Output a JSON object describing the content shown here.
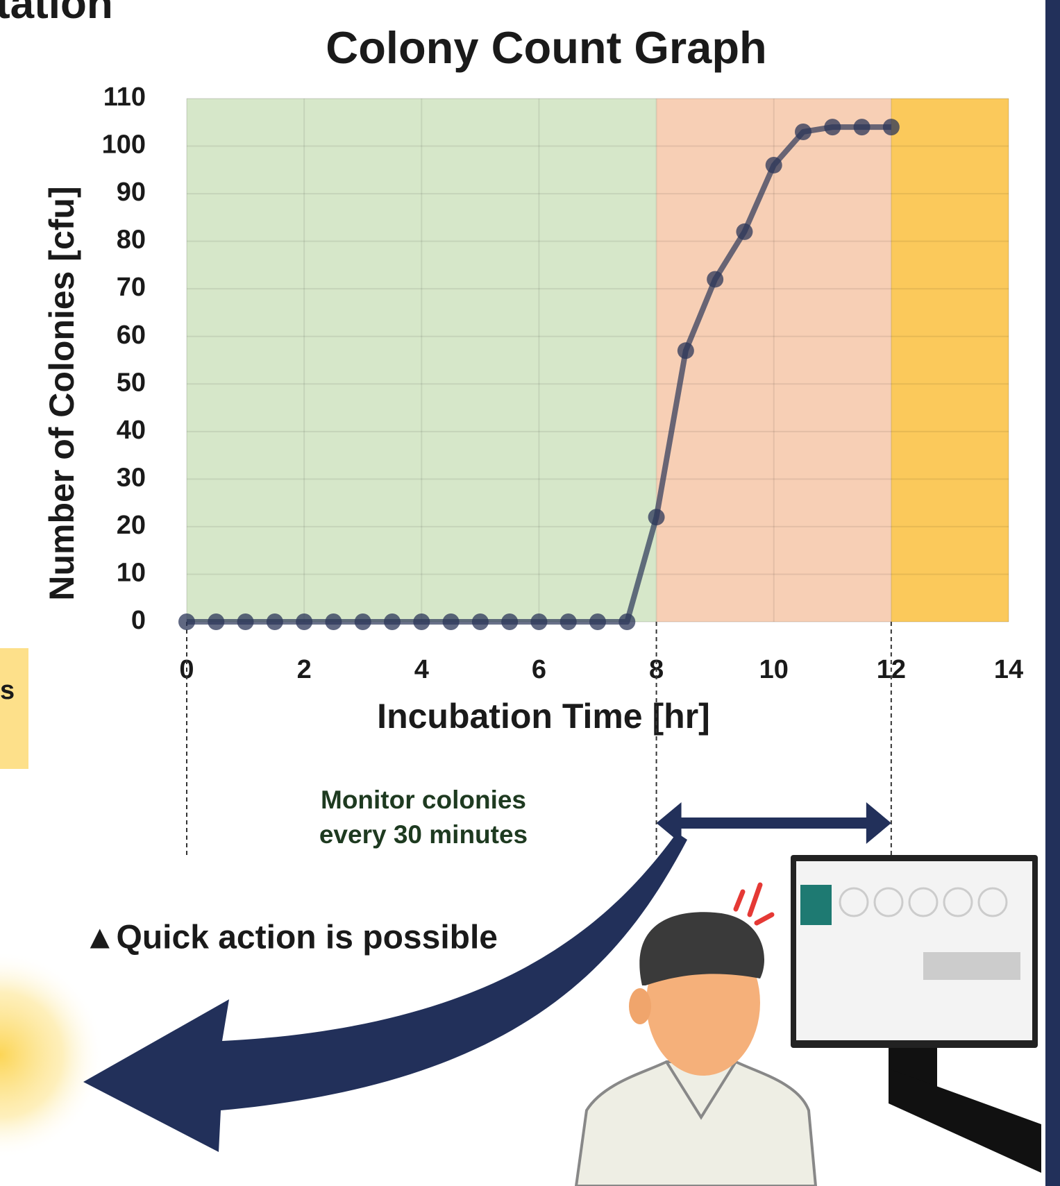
{
  "chart_data": {
    "type": "line",
    "title": "Colony Count Graph",
    "x_label": "Incubation Time [hr]",
    "y_label": "Number of Colonies [cfu]",
    "x": [
      0,
      0.5,
      1,
      1.5,
      2,
      2.5,
      3,
      3.5,
      4,
      4.5,
      5,
      5.5,
      6,
      6.5,
      7,
      7.5,
      8,
      8.5,
      9,
      9.5,
      10,
      10.5,
      11,
      11.5,
      12
    ],
    "series": [
      {
        "color": "#2b3658",
        "values": [
          0,
          0,
          0,
          0,
          0,
          0,
          0,
          0,
          0,
          0,
          0,
          0,
          0,
          0,
          0,
          0,
          22,
          57,
          72,
          82,
          96,
          103,
          104,
          104,
          104
        ]
      }
    ],
    "xlim": [
      0,
      14
    ],
    "xticks": [
      0,
      2,
      4,
      6,
      8,
      10,
      12,
      14
    ],
    "ylim": [
      0,
      110
    ],
    "yticks": [
      0,
      10,
      20,
      30,
      40,
      50,
      60,
      70,
      80,
      90,
      100,
      110
    ],
    "grid": true,
    "regions": [
      {
        "from": 0,
        "to": 8,
        "color": "#d6e7c9"
      },
      {
        "from": 8,
        "to": 12,
        "color": "#f7cfb5"
      },
      {
        "from": 12,
        "to": 14,
        "color": "#fbc95b"
      }
    ],
    "markers_x": [
      0,
      8,
      12
    ],
    "span": [
      8,
      12
    ],
    "annotations": [
      "Monitor colonies",
      "every 30 minutes"
    ]
  },
  "header": {
    "text": "tation",
    "sup": "®"
  },
  "side_note": "s",
  "callout": "▲Quick action is possible"
}
